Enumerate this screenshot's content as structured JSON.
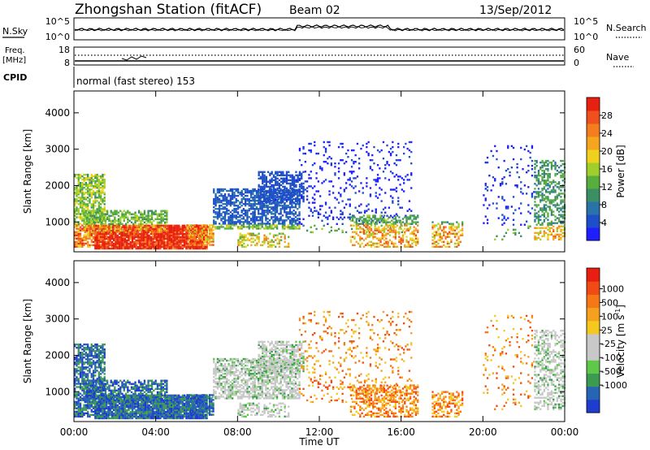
{
  "header": {
    "station": "Zhongshan Station (fitACF)",
    "beam": "Beam 02",
    "date": "13/Sep/2012"
  },
  "nsky_panel": {
    "left_label": "N.Sky",
    "left_ticks": [
      "10^5",
      "10^0"
    ],
    "right_label": "N.Search",
    "right_ticks": [
      "10^5",
      "10^0"
    ]
  },
  "freq_panel": {
    "left_label_top": "Freq.",
    "left_label_bottom": "[MHz]",
    "left_ticks": [
      "18",
      "8"
    ],
    "right_label": "Nave",
    "right_ticks": [
      "60",
      "0"
    ]
  },
  "cpid": {
    "label": "CPID",
    "text": "normal (fast stereo) 153"
  },
  "chart_data": [
    {
      "type": "heatmap",
      "title": "",
      "ylabel": "Slant Range [km]",
      "xlabel": "",
      "x_ticks": [
        "00:00",
        "04:00",
        "08:00",
        "12:00",
        "16:00",
        "20:00",
        "00:00"
      ],
      "y_ticks": [
        "1000",
        "2000",
        "3000",
        "4000"
      ],
      "ylim": [
        180,
        4600
      ],
      "colorbar": {
        "label": "Power [dB]",
        "ticks": [
          "4",
          "8",
          "12",
          "16",
          "20",
          "24",
          "28"
        ],
        "colors": [
          "#1e1eff",
          "#1e4fc8",
          "#2a73a8",
          "#3c8f64",
          "#57ae3c",
          "#9fcf2a",
          "#f0d21e",
          "#f5a51e",
          "#f57d1e",
          "#f0501e",
          "#e82010"
        ]
      }
    },
    {
      "type": "heatmap",
      "title": "",
      "ylabel": "Slant Range [km]",
      "xlabel": "Time UT",
      "x_ticks": [
        "00:00",
        "04:00",
        "08:00",
        "12:00",
        "16:00",
        "20:00",
        "00:00"
      ],
      "y_ticks": [
        "1000",
        "2000",
        "3000",
        "4000"
      ],
      "ylim": [
        180,
        4600
      ],
      "colorbar": {
        "label": "Velocity [m s^-1]",
        "ticks": [
          "1000",
          "500",
          "100",
          "25",
          "-25",
          "-100",
          "-500",
          "-1000"
        ],
        "colors": [
          "#1e3ccd",
          "#2864b4",
          "#3c9b50",
          "#5fc84b",
          "#c8c8c8",
          "#c8c8c8",
          "#f5c81e",
          "#f5a01e",
          "#f57814",
          "#f04b14",
          "#e81e10"
        ]
      }
    }
  ]
}
